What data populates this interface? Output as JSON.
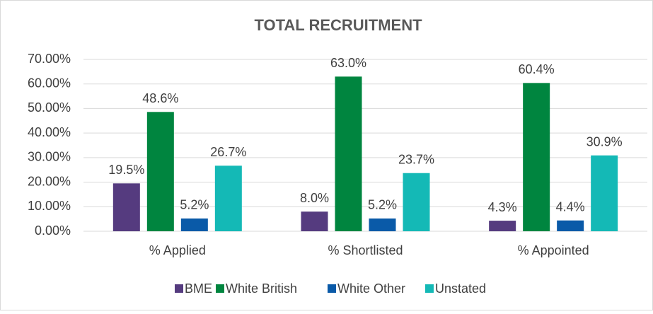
{
  "chart_data": {
    "type": "bar",
    "title": "TOTAL RECRUITMENT",
    "categories": [
      "%  Applied",
      "%  Shortlisted",
      "%  Appointed"
    ],
    "series": [
      {
        "name": "BME",
        "color": "#553b7f",
        "values": [
          19.5,
          8.0,
          4.3
        ],
        "value_labels": [
          "19.5%",
          "8.0%",
          "4.3%"
        ]
      },
      {
        "name": "White British",
        "color": "#00853f",
        "values": [
          48.6,
          63.0,
          60.4
        ],
        "value_labels": [
          "48.6%",
          "63.0%",
          "60.4%"
        ]
      },
      {
        "name": "White Other",
        "color": "#0a5aa8",
        "values": [
          5.2,
          5.2,
          4.4
        ],
        "value_labels": [
          "5.2%",
          "5.2%",
          "4.4%"
        ]
      },
      {
        "name": "Unstated",
        "color": "#14b9b6",
        "values": [
          26.7,
          23.7,
          30.9
        ],
        "value_labels": [
          "26.7%",
          "23.7%",
          "30.9%"
        ]
      }
    ],
    "ylim": [
      0,
      70
    ],
    "yticks": [
      {
        "value": 0,
        "label": "0.00%"
      },
      {
        "value": 10,
        "label": "10.00%"
      },
      {
        "value": 20,
        "label": "20.00%"
      },
      {
        "value": 30,
        "label": "30.00%"
      },
      {
        "value": 40,
        "label": "40.00%"
      },
      {
        "value": 50,
        "label": "50.00%"
      },
      {
        "value": 60,
        "label": "60.00%"
      },
      {
        "value": 70,
        "label": "70.00%"
      }
    ],
    "legend": "bottom"
  }
}
